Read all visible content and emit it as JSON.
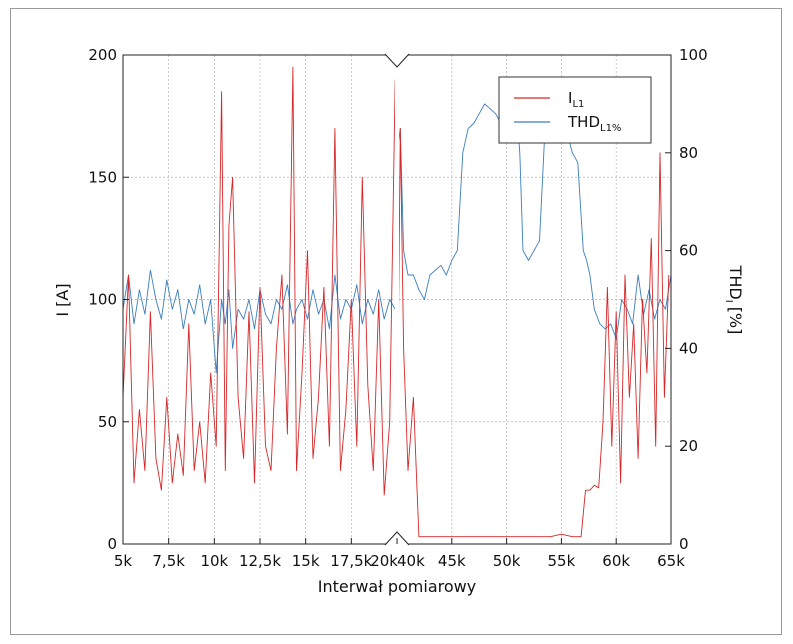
{
  "chart_data": {
    "type": "line",
    "xlabel": "Interwał pomiarowy",
    "ylabel_left": "I [A]",
    "ylabel_right": "THD",
    "ylabel_right_sub": "I",
    "ylabel_right_unit": "[%]",
    "ylim_left": [
      0,
      200
    ],
    "ylim_right": [
      0,
      100
    ],
    "left_ticks": [
      "0",
      "50",
      "100",
      "150",
      "200"
    ],
    "right_ticks": [
      "0",
      "20",
      "40",
      "60",
      "80",
      "100"
    ],
    "x_break": true,
    "segments": [
      {
        "xlim": [
          5000,
          20000
        ],
        "tick_values": [
          5000,
          7500,
          10000,
          12500,
          15000,
          17500,
          20000
        ],
        "tick_labels": [
          "5k",
          "7,5k",
          "10k",
          "12,5k",
          "15k",
          "17,5k",
          "20k"
        ]
      },
      {
        "xlim": [
          40000,
          65000
        ],
        "tick_values": [
          40000,
          45000,
          50000,
          55000,
          60000,
          65000
        ],
        "tick_labels": [
          "40k",
          "45k",
          "50k",
          "55k",
          "60k",
          "65k"
        ]
      }
    ],
    "grid": true,
    "legend_position": "top-right",
    "series": [
      {
        "name": "I",
        "name_sub": "L1",
        "axis": "left",
        "color": "#d62728",
        "x": [
          5000,
          5300,
          5600,
          5900,
          6200,
          6500,
          6800,
          7100,
          7400,
          7700,
          8000,
          8300,
          8600,
          8900,
          9200,
          9500,
          9800,
          10100,
          10400,
          10600,
          10800,
          11000,
          11300,
          11600,
          11900,
          12200,
          12500,
          12800,
          13100,
          13400,
          13700,
          14000,
          14300,
          14500,
          14800,
          15100,
          15400,
          15700,
          16000,
          16300,
          16600,
          16900,
          17200,
          17500,
          17800,
          18100,
          18400,
          18700,
          19000,
          19300,
          19600,
          19900,
          40000,
          40300,
          40600,
          41000,
          41500,
          42000,
          43000,
          44000,
          45000,
          46000,
          47000,
          48000,
          49000,
          50000,
          51000,
          52000,
          53000,
          54000,
          55000,
          56000,
          56800,
          57200,
          57600,
          58000,
          58400,
          58800,
          59200,
          59600,
          60000,
          60400,
          60800,
          61200,
          61600,
          62000,
          62400,
          62800,
          63200,
          63600,
          64000,
          64400,
          64800
        ],
        "y": [
          60,
          110,
          25,
          55,
          30,
          95,
          35,
          22,
          60,
          25,
          45,
          28,
          90,
          30,
          50,
          25,
          70,
          40,
          185,
          30,
          130,
          150,
          60,
          35,
          95,
          25,
          105,
          40,
          30,
          80,
          110,
          45,
          195,
          30,
          70,
          120,
          35,
          60,
          105,
          40,
          170,
          30,
          55,
          100,
          40,
          150,
          65,
          30,
          100,
          20,
          50,
          190,
          25,
          170,
          80,
          30,
          60,
          3,
          3,
          3,
          3,
          3,
          3,
          3,
          3,
          3,
          3,
          3,
          3,
          3,
          4,
          3,
          3,
          22,
          22,
          24,
          23,
          50,
          105,
          40,
          95,
          25,
          110,
          60,
          90,
          35,
          100,
          70,
          125,
          40,
          160,
          60,
          110
        ]
      },
      {
        "name": "THD",
        "name_sub": "L1%",
        "axis": "right",
        "color": "#3a7ebf",
        "x": [
          5000,
          5300,
          5600,
          5900,
          6200,
          6500,
          6800,
          7100,
          7400,
          7700,
          8000,
          8300,
          8600,
          8900,
          9200,
          9500,
          9800,
          10100,
          10400,
          10600,
          10800,
          11000,
          11300,
          11600,
          11900,
          12200,
          12500,
          12800,
          13100,
          13400,
          13700,
          14000,
          14300,
          14500,
          14800,
          15100,
          15400,
          15700,
          16000,
          16300,
          16600,
          16900,
          17200,
          17500,
          17800,
          18100,
          18400,
          18700,
          19000,
          19300,
          19600,
          19900,
          40000,
          40300,
          40600,
          41000,
          41500,
          42000,
          42500,
          43000,
          43500,
          44000,
          44500,
          45000,
          45500,
          46000,
          46500,
          47000,
          47500,
          48000,
          48500,
          49000,
          49500,
          50000,
          50500,
          51000,
          51200,
          51500,
          52000,
          52500,
          53000,
          53500,
          54000,
          54500,
          55000,
          55500,
          56000,
          56500,
          57000,
          57300,
          57600,
          58000,
          58500,
          59000,
          59500,
          60000,
          60500,
          61000,
          61500,
          62000,
          62500,
          63000,
          63500,
          64000,
          64500,
          65000
        ],
        "y": [
          48,
          55,
          45,
          52,
          47,
          56,
          50,
          46,
          54,
          48,
          52,
          44,
          50,
          47,
          53,
          45,
          50,
          35,
          50,
          45,
          52,
          40,
          48,
          46,
          50,
          44,
          52,
          47,
          45,
          50,
          48,
          53,
          45,
          48,
          50,
          46,
          52,
          47,
          50,
          44,
          55,
          46,
          50,
          48,
          53,
          45,
          50,
          47,
          52,
          46,
          50,
          48,
          80,
          85,
          60,
          55,
          55,
          52,
          50,
          55,
          56,
          57,
          55,
          58,
          60,
          80,
          85,
          86,
          88,
          90,
          89,
          88,
          86,
          88,
          84,
          86,
          80,
          60,
          58,
          60,
          62,
          85,
          88,
          86,
          82,
          84,
          80,
          78,
          60,
          58,
          55,
          48,
          45,
          44,
          45,
          42,
          50,
          48,
          45,
          55,
          47,
          52,
          46,
          50,
          48,
          55
        ]
      }
    ]
  }
}
